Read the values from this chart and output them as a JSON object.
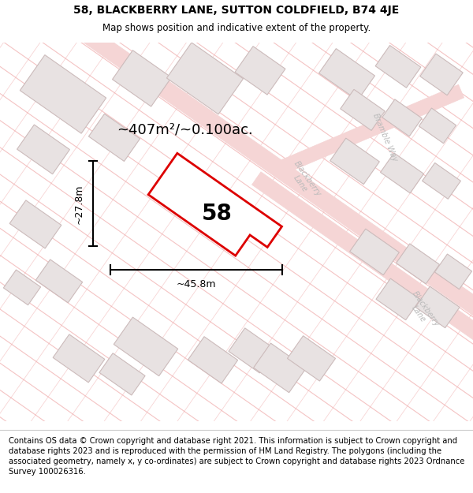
{
  "title_line1": "58, BLACKBERRY LANE, SUTTON COLDFIELD, B74 4JE",
  "title_line2": "Map shows position and indicative extent of the property.",
  "footer_text": "Contains OS data © Crown copyright and database right 2021. This information is subject to Crown copyright and database rights 2023 and is reproduced with the permission of HM Land Registry. The polygons (including the associated geometry, namely x, y co-ordinates) are subject to Crown copyright and database rights 2023 Ordnance Survey 100026316.",
  "area_label": "~407m²/~0.100ac.",
  "width_label": "~45.8m",
  "height_label": "~27.8m",
  "property_number": "58",
  "map_bg": "#faf7f7",
  "road_line_color": "#f0aaaa",
  "road_fill_color": "#f5d0d0",
  "building_fill": "#e8e2e2",
  "building_edge": "#ccbbbb",
  "property_fill": "#ffffff",
  "property_edge": "#dd0000",
  "street_label_color": "#bbbbbb",
  "title_fontsize": 10,
  "subtitle_fontsize": 8.5,
  "footer_fontsize": 7.2,
  "area_fontsize": 13,
  "number_fontsize": 20,
  "dim_fontsize": 9,
  "street_fontsize": 7
}
